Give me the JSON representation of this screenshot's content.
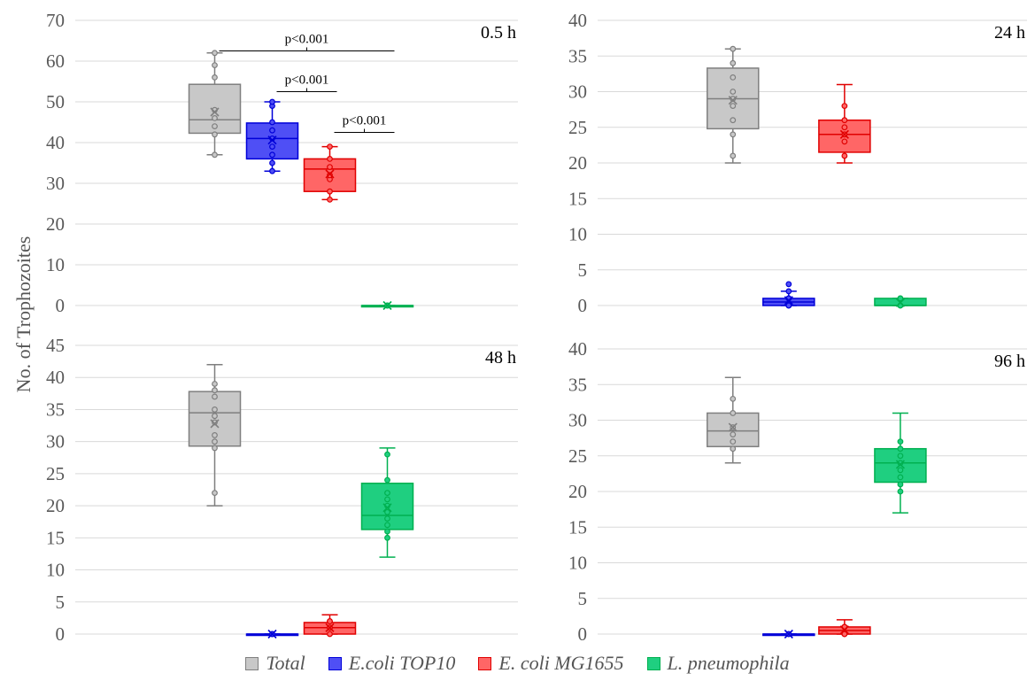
{
  "figure": {
    "y_axis_label": "No. of Trophozoites"
  },
  "legend": [
    {
      "name": "Total",
      "color": "#c8c8c8",
      "stroke": "#7f7f7f"
    },
    {
      "name": "E.coli TOP10",
      "color": "#4f4ff5",
      "stroke": "#0000d8"
    },
    {
      "name": "E. coli MG1655",
      "color": "#ff6666",
      "stroke": "#e00000"
    },
    {
      "name": "L. pneumophila",
      "color": "#1fcf80",
      "stroke": "#00b050"
    }
  ],
  "chart_data": [
    {
      "type": "box",
      "title": "0.5 h",
      "ylim": [
        0,
        70
      ],
      "yticks": [
        0,
        10,
        20,
        30,
        40,
        50,
        60,
        70
      ],
      "grid": true,
      "boxes": [
        {
          "group": "Total",
          "min": 37,
          "q1": 42.3,
          "median": 45.6,
          "q3": 54.3,
          "max": 62,
          "mean": 47.5,
          "points": [
            37,
            42,
            44,
            46,
            48,
            56,
            59,
            62
          ]
        },
        {
          "group": "E.coli TOP10",
          "min": 33,
          "q1": 36,
          "median": 41,
          "q3": 44.8,
          "max": 50,
          "mean": 40.6,
          "points": [
            33,
            35,
            37,
            39,
            41,
            43,
            45,
            49,
            50
          ]
        },
        {
          "group": "E. coli MG1655",
          "min": 26,
          "q1": 28,
          "median": 33.5,
          "q3": 36,
          "max": 39,
          "mean": 32.3,
          "points": [
            26,
            28,
            31,
            32,
            34,
            36,
            39
          ]
        },
        {
          "group": "L. pneumophila",
          "min": 0,
          "q1": 0,
          "median": 0,
          "q3": 0,
          "max": 0,
          "mean": 0,
          "points": [
            0,
            0,
            0
          ]
        }
      ],
      "annotations": [
        {
          "label": "p<0.001",
          "from": "Total",
          "to": "L. pneumophila",
          "y": 62.5
        },
        {
          "label": "p<0.001",
          "from": "E.coli TOP10",
          "to": "E. coli MG1655",
          "y": 52.5
        },
        {
          "label": "p<0.001",
          "from": "E. coli MG1655",
          "to": "L. pneumophila",
          "y": 42.5
        }
      ]
    },
    {
      "type": "box",
      "title": "24 h",
      "ylim": [
        0,
        40
      ],
      "yticks": [
        0,
        5,
        10,
        15,
        20,
        25,
        30,
        35,
        40
      ],
      "grid": true,
      "boxes": [
        {
          "group": "Total",
          "min": 20,
          "q1": 24.8,
          "median": 29,
          "q3": 33.3,
          "max": 36,
          "mean": 28.8,
          "points": [
            21,
            24,
            26,
            28,
            29,
            30,
            32,
            34,
            36
          ]
        },
        {
          "group": "E.coli TOP10",
          "min": 0,
          "q1": 0,
          "median": 0.5,
          "q3": 1,
          "max": 2,
          "mean": 0.7,
          "points": [
            0,
            0,
            1,
            1,
            2,
            3
          ]
        },
        {
          "group": "E. coli MG1655",
          "min": 20,
          "q1": 21.5,
          "median": 24,
          "q3": 26,
          "max": 31,
          "mean": 24,
          "points": [
            21,
            23,
            24,
            25,
            26,
            28
          ]
        },
        {
          "group": "L. pneumophila",
          "min": 0,
          "q1": 0,
          "median": 0,
          "q3": 1,
          "max": 1,
          "mean": 0.4,
          "points": [
            0,
            0,
            1,
            1
          ]
        }
      ]
    },
    {
      "type": "box",
      "title": "48 h",
      "ylim": [
        0,
        45
      ],
      "yticks": [
        0,
        5,
        10,
        15,
        20,
        25,
        30,
        35,
        40,
        45
      ],
      "grid": true,
      "boxes": [
        {
          "group": "Total",
          "min": 20,
          "q1": 29.3,
          "median": 34.5,
          "q3": 37.8,
          "max": 42,
          "mean": 32.8,
          "points": [
            22,
            29,
            30,
            31,
            33,
            34,
            35,
            37,
            38,
            39
          ]
        },
        {
          "group": "E.coli TOP10",
          "min": 0,
          "q1": 0,
          "median": 0,
          "q3": 0,
          "max": 0,
          "mean": 0,
          "points": [
            0,
            0,
            0
          ]
        },
        {
          "group": "E. coli MG1655",
          "min": 0,
          "q1": 0,
          "median": 1,
          "q3": 1.8,
          "max": 3,
          "mean": 1,
          "points": [
            0,
            1,
            1,
            2,
            2
          ]
        },
        {
          "group": "L. pneumophila",
          "min": 12,
          "q1": 16.3,
          "median": 18.5,
          "q3": 23.5,
          "max": 29,
          "mean": 19.7,
          "points": [
            15,
            16,
            17,
            18,
            19,
            20,
            21,
            22,
            24,
            28
          ]
        }
      ]
    },
    {
      "type": "box",
      "title": "96 h",
      "ylim": [
        0,
        40
      ],
      "yticks": [
        0,
        5,
        10,
        15,
        20,
        25,
        30,
        35,
        40
      ],
      "grid": true,
      "boxes": [
        {
          "group": "Total",
          "min": 24,
          "q1": 26.3,
          "median": 28.5,
          "q3": 31,
          "max": 36,
          "mean": 29,
          "points": [
            26,
            27,
            28,
            29,
            31,
            33
          ]
        },
        {
          "group": "E.coli TOP10",
          "min": 0,
          "q1": 0,
          "median": 0,
          "q3": 0,
          "max": 0,
          "mean": 0,
          "points": [
            0,
            0
          ]
        },
        {
          "group": "E. coli MG1655",
          "min": 0,
          "q1": 0,
          "median": 0.5,
          "q3": 1,
          "max": 2,
          "mean": 0.6,
          "points": [
            0,
            0,
            1,
            1
          ]
        },
        {
          "group": "L. pneumophila",
          "min": 17,
          "q1": 21.3,
          "median": 24,
          "q3": 26,
          "max": 31,
          "mean": 23.8,
          "points": [
            20,
            21,
            22,
            23,
            24,
            25,
            26,
            27
          ]
        }
      ]
    }
  ]
}
